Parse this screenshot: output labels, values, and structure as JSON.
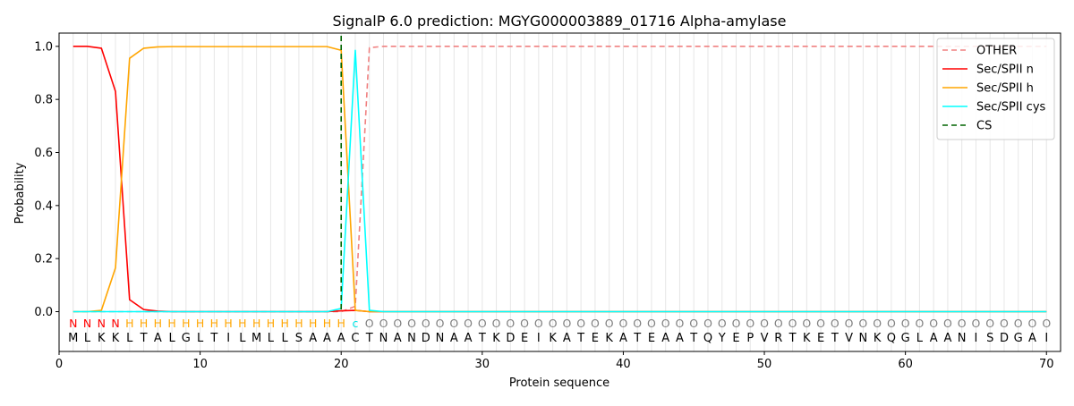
{
  "chart_data": {
    "type": "line",
    "title": "SignalP 6.0 prediction: MGYG000003889_01716 Alpha-amylase",
    "xlabel": "Protein sequence",
    "ylabel": "Probability",
    "xlim": [
      0,
      71
    ],
    "ylim": [
      -0.15,
      1.05
    ],
    "xticks": [
      0,
      10,
      20,
      30,
      40,
      50,
      60,
      70
    ],
    "yticks": [
      0.0,
      0.2,
      0.4,
      0.6,
      0.8,
      1.0
    ],
    "grid": "vertical lines at each residue",
    "legend_position": "top-right",
    "sequence": "MLKKLTALGLTILMLLSAAACTNANDNAATKDEIKATEKATEAATQYEPVRTKETVNKQGLAANISDGAI",
    "labels": "NNNNHHHHHHHHHHHHHHHHcOOOOOOOOOOOOOOOOOOOOOOOOOOOOOOOOOOOOOOOOOOOOOOOOO",
    "label_colors": {
      "N": "#ff0000",
      "H": "#ffa500",
      "c": "#00e5e5",
      "O": "#808080"
    },
    "cs_position": 20,
    "series": [
      {
        "name": "OTHER",
        "color": "#f08080",
        "dash": "dashed",
        "x": [
          1,
          2,
          3,
          4,
          5,
          6,
          7,
          8,
          9,
          10,
          11,
          12,
          13,
          14,
          15,
          16,
          17,
          18,
          19,
          20,
          21,
          22,
          23,
          24,
          25,
          26,
          27,
          28,
          29,
          30,
          31,
          32,
          33,
          34,
          35,
          36,
          37,
          38,
          39,
          40,
          41,
          42,
          43,
          44,
          45,
          46,
          47,
          48,
          49,
          50,
          51,
          52,
          53,
          54,
          55,
          56,
          57,
          58,
          59,
          60,
          61,
          62,
          63,
          64,
          65,
          66,
          67,
          68,
          69,
          70
        ],
        "values": [
          0,
          0,
          0,
          0,
          0,
          0,
          0,
          0,
          0,
          0,
          0,
          0,
          0,
          0,
          0,
          0,
          0,
          0,
          0,
          0,
          0.02,
          0.995,
          1,
          1,
          1,
          1,
          1,
          1,
          1,
          1,
          1,
          1,
          1,
          1,
          1,
          1,
          1,
          1,
          1,
          1,
          1,
          1,
          1,
          1,
          1,
          1,
          1,
          1,
          1,
          1,
          1,
          1,
          1,
          1,
          1,
          1,
          1,
          1,
          1,
          1,
          1,
          1,
          1,
          1,
          1,
          1,
          1,
          1,
          1,
          1
        ]
      },
      {
        "name": "Sec/SPII n",
        "color": "#ff0000",
        "dash": "solid",
        "x": [
          1,
          2,
          3,
          4,
          5,
          6,
          7,
          8,
          9,
          10,
          11,
          12,
          13,
          14,
          15,
          16,
          17,
          18,
          19,
          20,
          21,
          22,
          23,
          24,
          25,
          26,
          27,
          28,
          29,
          30,
          31,
          32,
          33,
          34,
          35,
          36,
          37,
          38,
          39,
          40,
          41,
          42,
          43,
          44,
          45,
          46,
          47,
          48,
          49,
          50,
          51,
          52,
          53,
          54,
          55,
          56,
          57,
          58,
          59,
          60,
          61,
          62,
          63,
          64,
          65,
          66,
          67,
          68,
          69,
          70
        ],
        "values": [
          1.0,
          1.0,
          0.993,
          0.83,
          0.045,
          0.008,
          0.002,
          0,
          0,
          0,
          0,
          0,
          0,
          0,
          0,
          0,
          0,
          0,
          0,
          0.003,
          0.005,
          0,
          0,
          0,
          0,
          0,
          0,
          0,
          0,
          0,
          0,
          0,
          0,
          0,
          0,
          0,
          0,
          0,
          0,
          0,
          0,
          0,
          0,
          0,
          0,
          0,
          0,
          0,
          0,
          0,
          0,
          0,
          0,
          0,
          0,
          0,
          0,
          0,
          0,
          0,
          0,
          0,
          0,
          0,
          0,
          0,
          0,
          0,
          0,
          0
        ]
      },
      {
        "name": "Sec/SPII h",
        "color": "#ffa500",
        "dash": "solid",
        "x": [
          1,
          2,
          3,
          4,
          5,
          6,
          7,
          8,
          9,
          10,
          11,
          12,
          13,
          14,
          15,
          16,
          17,
          18,
          19,
          20,
          21,
          22,
          23,
          24,
          25,
          26,
          27,
          28,
          29,
          30,
          31,
          32,
          33,
          34,
          35,
          36,
          37,
          38,
          39,
          40,
          41,
          42,
          43,
          44,
          45,
          46,
          47,
          48,
          49,
          50,
          51,
          52,
          53,
          54,
          55,
          56,
          57,
          58,
          59,
          60,
          61,
          62,
          63,
          64,
          65,
          66,
          67,
          68,
          69,
          70
        ],
        "values": [
          0,
          0,
          0.005,
          0.165,
          0.955,
          0.993,
          0.998,
          0.999,
          0.999,
          0.999,
          0.999,
          0.999,
          0.999,
          0.999,
          0.999,
          0.999,
          0.999,
          0.999,
          0.999,
          0.985,
          0.005,
          0,
          0,
          0,
          0,
          0,
          0,
          0,
          0,
          0,
          0,
          0,
          0,
          0,
          0,
          0,
          0,
          0,
          0,
          0,
          0,
          0,
          0,
          0,
          0,
          0,
          0,
          0,
          0,
          0,
          0,
          0,
          0,
          0,
          0,
          0,
          0,
          0,
          0,
          0,
          0,
          0,
          0,
          0,
          0,
          0,
          0,
          0,
          0,
          0
        ]
      },
      {
        "name": "Sec/SPII cys",
        "color": "#00ffff",
        "dash": "solid",
        "x": [
          1,
          2,
          3,
          4,
          5,
          6,
          7,
          8,
          9,
          10,
          11,
          12,
          13,
          14,
          15,
          16,
          17,
          18,
          19,
          20,
          21,
          22,
          23,
          24,
          25,
          26,
          27,
          28,
          29,
          30,
          31,
          32,
          33,
          34,
          35,
          36,
          37,
          38,
          39,
          40,
          41,
          42,
          43,
          44,
          45,
          46,
          47,
          48,
          49,
          50,
          51,
          52,
          53,
          54,
          55,
          56,
          57,
          58,
          59,
          60,
          61,
          62,
          63,
          64,
          65,
          66,
          67,
          68,
          69,
          70
        ],
        "values": [
          0,
          0,
          0,
          0,
          0,
          0,
          0,
          0,
          0,
          0,
          0,
          0,
          0,
          0,
          0,
          0,
          0,
          0,
          0,
          0.012,
          0.985,
          0.005,
          0,
          0,
          0,
          0,
          0,
          0,
          0,
          0,
          0,
          0,
          0,
          0,
          0,
          0,
          0,
          0,
          0,
          0,
          0,
          0,
          0,
          0,
          0,
          0,
          0,
          0,
          0,
          0,
          0,
          0,
          0,
          0,
          0,
          0,
          0,
          0,
          0,
          0,
          0,
          0,
          0,
          0,
          0,
          0,
          0,
          0,
          0,
          0
        ]
      },
      {
        "name": "CS",
        "color": "#006400",
        "dash": "dashed",
        "vertical_at": 20
      }
    ]
  }
}
